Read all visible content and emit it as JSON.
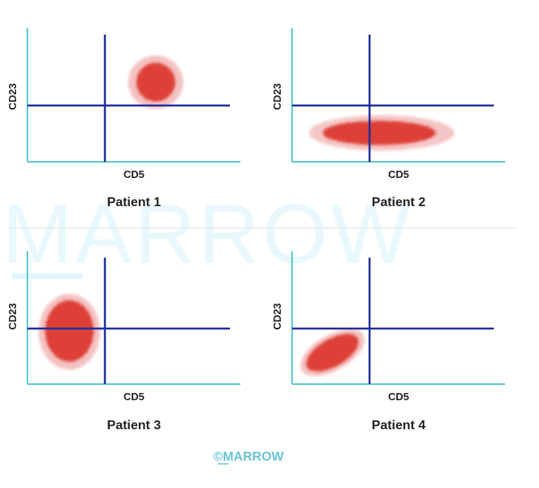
{
  "watermark_text": "MARROW",
  "copyright_text": "©MARROW",
  "colors": {
    "axis": "#5dc9d4",
    "gate": "#1f2f9c",
    "cell_cluster": "#d9281f",
    "text": "#222222",
    "copyright": "#69c3d6"
  },
  "panels": [
    {
      "title": "Patient 1",
      "x_label": "CD5",
      "y_label": "CD23"
    },
    {
      "title": "Patient 2",
      "x_label": "CD5",
      "y_label": "CD23"
    },
    {
      "title": "Patient 3",
      "x_label": "CD5",
      "y_label": "CD23"
    },
    {
      "title": "Patient 4",
      "x_label": "CD5",
      "y_label": "CD23"
    }
  ]
}
